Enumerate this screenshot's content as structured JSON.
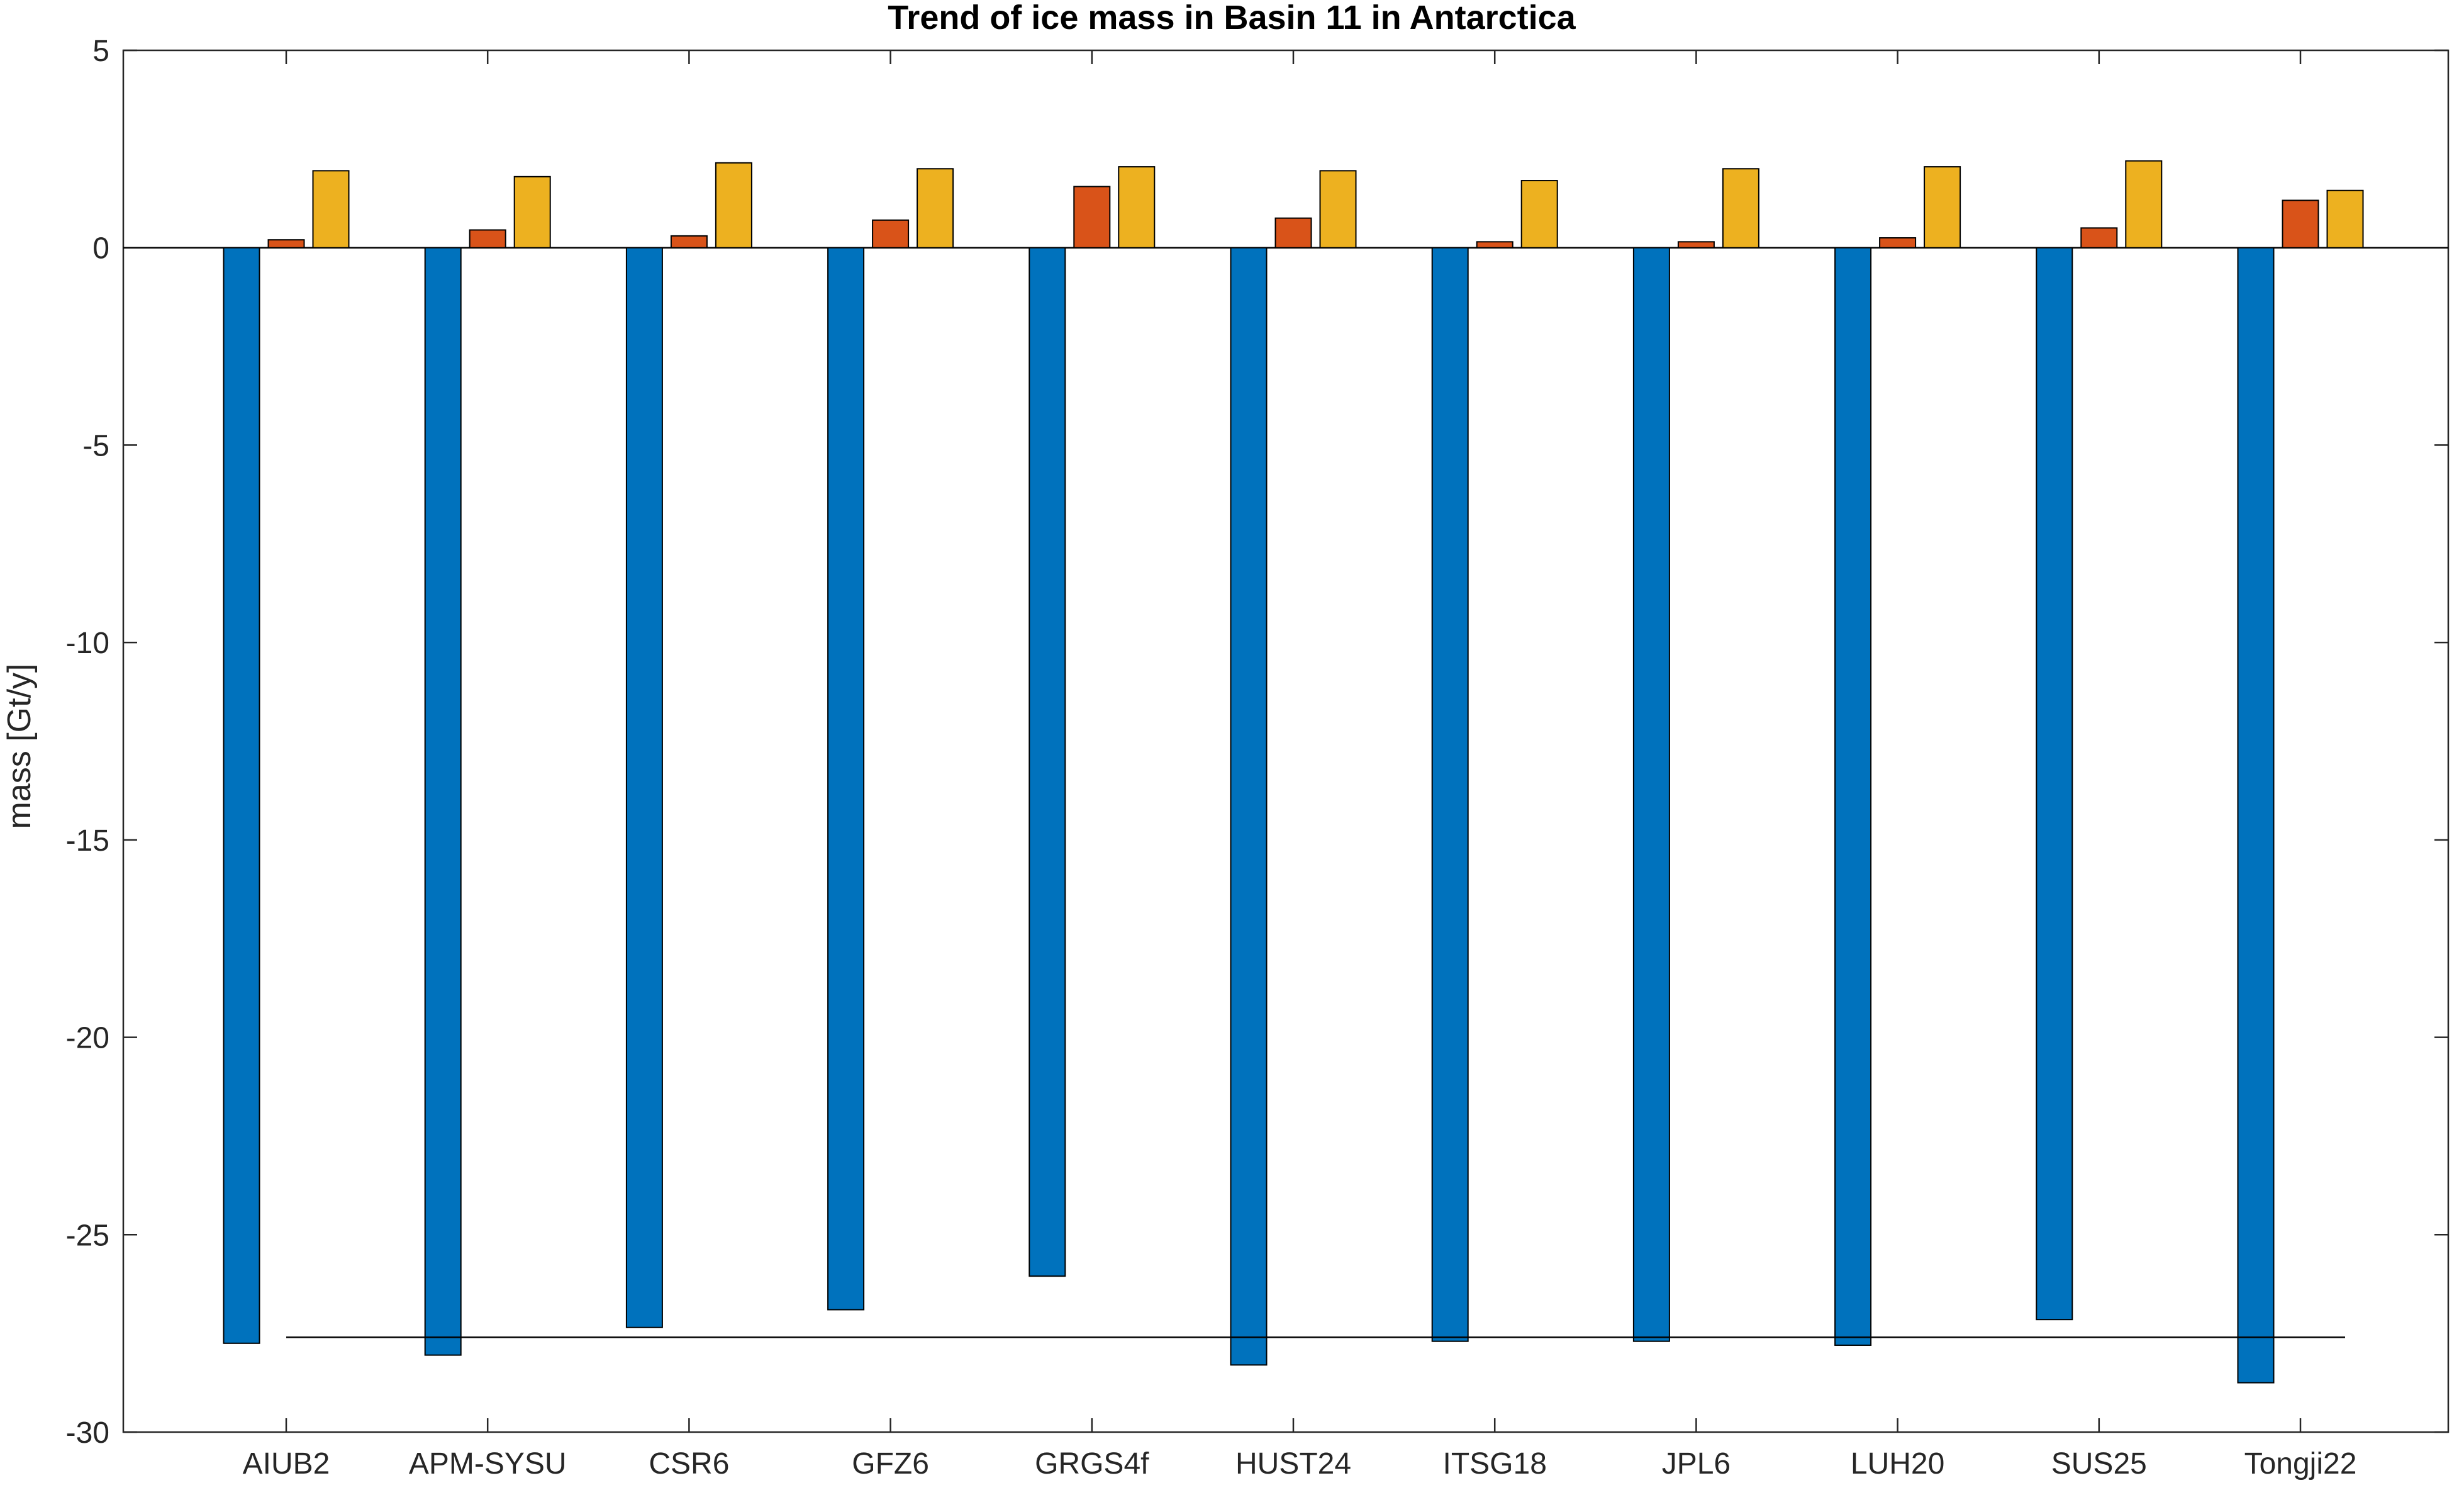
{
  "chart_data": {
    "type": "bar",
    "title": "Trend of ice mass in Basin 11 in Antarctica",
    "xlabel": "",
    "ylabel": "mass [Gt/y]",
    "ylim": [
      -30,
      5
    ],
    "yticks": [
      5,
      0,
      -5,
      -10,
      -15,
      -20,
      -25,
      -30
    ],
    "yticklabels": [
      "5",
      "0",
      "-5",
      "-10",
      "-15",
      "-20",
      "-25",
      "-30"
    ],
    "categories": [
      "AIUB2",
      "APM-SYSU",
      "CSR6",
      "GFZ6",
      "GRGS4f",
      "HUST24",
      "ITSG18",
      "JPL6",
      "LUH20",
      "SUS25",
      "Tongji22"
    ],
    "series": [
      {
        "color": "#0072BD",
        "values": [
          -27.75,
          -28.05,
          -27.35,
          -26.9,
          -26.05,
          -28.3,
          -27.7,
          -27.7,
          -27.8,
          -27.15,
          -28.75
        ]
      },
      {
        "color": "#D95319",
        "values": [
          0.2,
          0.45,
          0.3,
          0.7,
          1.55,
          0.75,
          0.15,
          0.15,
          0.25,
          0.5,
          1.2
        ]
      },
      {
        "color": "#EDB120",
        "values": [
          1.95,
          1.8,
          2.15,
          2.0,
          2.05,
          1.95,
          1.7,
          2.0,
          2.05,
          2.2,
          1.45
        ]
      }
    ],
    "reference_line": {
      "value": -27.6,
      "color": "#000000"
    },
    "grid": false,
    "legend": "none"
  }
}
